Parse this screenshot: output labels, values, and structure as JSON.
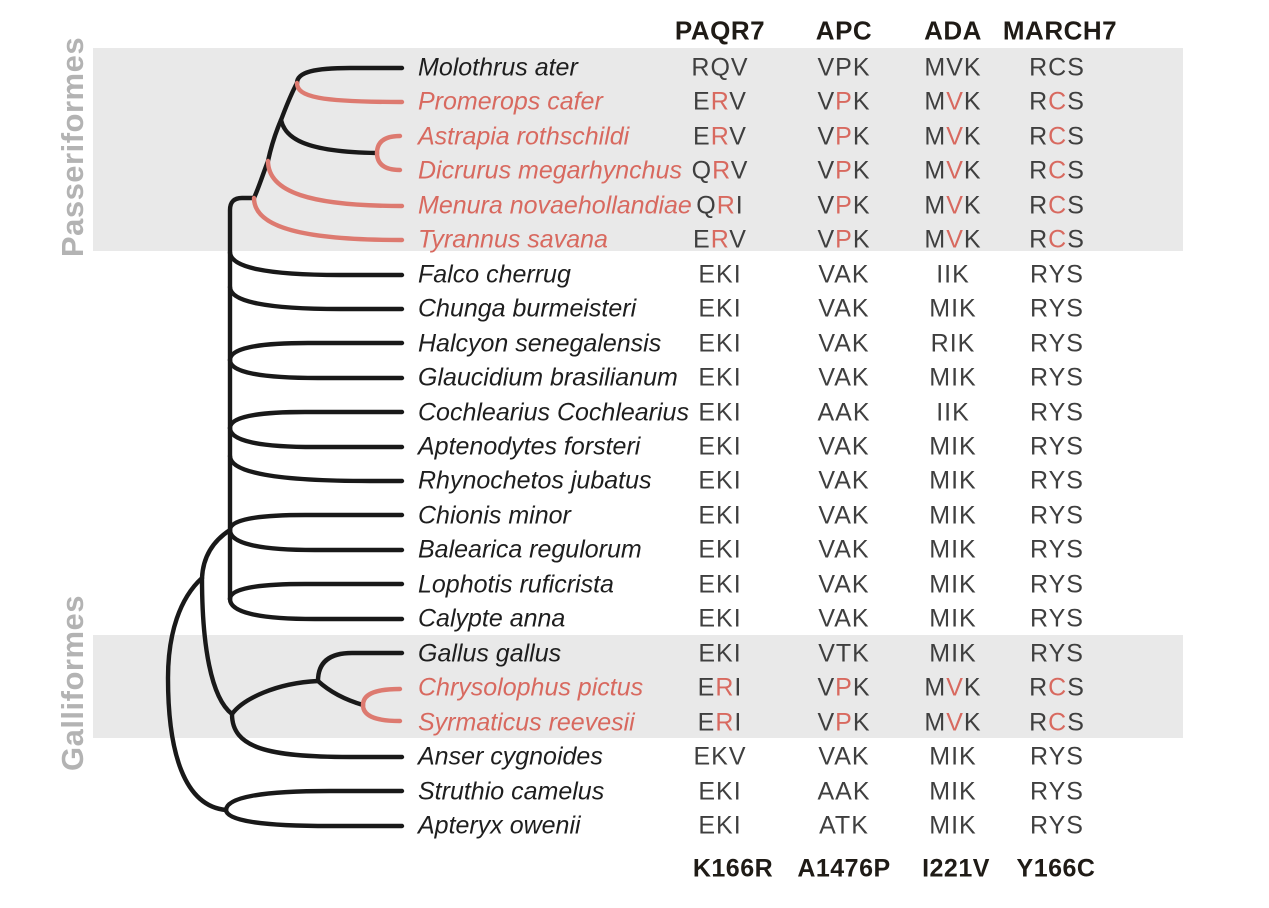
{
  "clades": [
    "Passeriformes",
    "Galliformes"
  ],
  "matrix": {
    "genes": [
      "PAQR7",
      "APC",
      "ADA",
      "MARCH7"
    ],
    "substitutions": [
      "K166R",
      "A1476P",
      "I221V",
      "Y166C"
    ]
  },
  "species": [
    {
      "name": "Molothrus ater",
      "highlighted": false,
      "cells": [
        "RQV",
        "VPK",
        "MVK",
        "RCS"
      ],
      "red_letter_index": null
    },
    {
      "name": "Promerops cafer",
      "highlighted": true,
      "cells": [
        "ERV",
        "VPK",
        "MVK",
        "RCS"
      ],
      "red_letter_index": 1
    },
    {
      "name": "Astrapia rothschildi",
      "highlighted": true,
      "cells": [
        "ERV",
        "VPK",
        "MVK",
        "RCS"
      ],
      "red_letter_index": 1
    },
    {
      "name": "Dicrurus megarhynchus",
      "highlighted": true,
      "cells": [
        "QRV",
        "VPK",
        "MVK",
        "RCS"
      ],
      "red_letter_index": 1
    },
    {
      "name": "Menura novaehollandiae",
      "highlighted": true,
      "cells": [
        "QRI",
        "VPK",
        "MVK",
        "RCS"
      ],
      "red_letter_index": 1
    },
    {
      "name": "Tyrannus savana",
      "highlighted": true,
      "cells": [
        "ERV",
        "VPK",
        "MVK",
        "RCS"
      ],
      "red_letter_index": 1
    },
    {
      "name": "Falco cherrug",
      "highlighted": false,
      "cells": [
        "EKI",
        "VAK",
        "IIK",
        "RYS"
      ],
      "red_letter_index": null
    },
    {
      "name": "Chunga burmeisteri",
      "highlighted": false,
      "cells": [
        "EKI",
        "VAK",
        "MIK",
        "RYS"
      ],
      "red_letter_index": null
    },
    {
      "name": "Halcyon senegalensis",
      "highlighted": false,
      "cells": [
        "EKI",
        "VAK",
        "RIK",
        "RYS"
      ],
      "red_letter_index": null
    },
    {
      "name": "Glaucidium brasilianum",
      "highlighted": false,
      "cells": [
        "EKI",
        "VAK",
        "MIK",
        "RYS"
      ],
      "red_letter_index": null
    },
    {
      "name": "Cochlearius Cochlearius",
      "highlighted": false,
      "cells": [
        "EKI",
        "AAK",
        "IIK",
        "RYS"
      ],
      "red_letter_index": null
    },
    {
      "name": "Aptenodytes forsteri",
      "highlighted": false,
      "cells": [
        "EKI",
        "VAK",
        "MIK",
        "RYS"
      ],
      "red_letter_index": null
    },
    {
      "name": "Rhynochetos jubatus",
      "highlighted": false,
      "cells": [
        "EKI",
        "VAK",
        "MIK",
        "RYS"
      ],
      "red_letter_index": null
    },
    {
      "name": "Chionis minor",
      "highlighted": false,
      "cells": [
        "EKI",
        "VAK",
        "MIK",
        "RYS"
      ],
      "red_letter_index": null
    },
    {
      "name": "Balearica regulorum",
      "highlighted": false,
      "cells": [
        "EKI",
        "VAK",
        "MIK",
        "RYS"
      ],
      "red_letter_index": null
    },
    {
      "name": "Lophotis ruficrista",
      "highlighted": false,
      "cells": [
        "EKI",
        "VAK",
        "MIK",
        "RYS"
      ],
      "red_letter_index": null
    },
    {
      "name": "Calypte anna",
      "highlighted": false,
      "cells": [
        "EKI",
        "VAK",
        "MIK",
        "RYS"
      ],
      "red_letter_index": null
    },
    {
      "name": "Gallus gallus",
      "highlighted": false,
      "cells": [
        "EKI",
        "VTK",
        "MIK",
        "RYS"
      ],
      "red_letter_index": null
    },
    {
      "name": "Chrysolophus pictus",
      "highlighted": true,
      "cells": [
        "ERI",
        "VPK",
        "MVK",
        "RCS"
      ],
      "red_letter_index": 1
    },
    {
      "name": "Syrmaticus reevesii",
      "highlighted": true,
      "cells": [
        "ERI",
        "VPK",
        "MVK",
        "RCS"
      ],
      "red_letter_index": 1
    },
    {
      "name": "Anser cygnoides",
      "highlighted": false,
      "cells": [
        "EKV",
        "VAK",
        "MIK",
        "RYS"
      ],
      "red_letter_index": null
    },
    {
      "name": "Struthio camelus",
      "highlighted": false,
      "cells": [
        "EKI",
        "AAK",
        "MIK",
        "RYS"
      ],
      "red_letter_index": null
    },
    {
      "name": "Apteryx owenii",
      "highlighted": false,
      "cells": [
        "EKI",
        "ATK",
        "MIK",
        "RYS"
      ],
      "red_letter_index": null
    }
  ],
  "colors": {
    "highlight_text": "#d8695f",
    "highlight_branch": "#dd7a70",
    "branch_black": "#191919",
    "matrix_letter": "#3f3f3f",
    "band_gray": "#e9e9e9",
    "clade_label_gray": "#b3b3b3"
  }
}
